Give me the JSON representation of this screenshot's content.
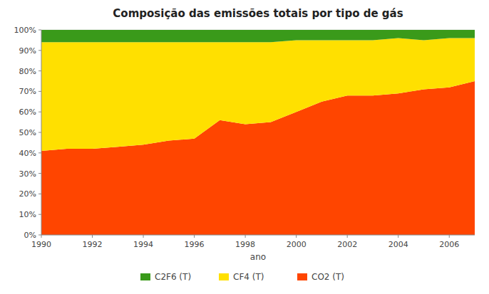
{
  "chart_data": {
    "type": "area",
    "stacked": true,
    "title": "Composição das emissões totais por tipo de gás",
    "x_label": "ano",
    "x": [
      1990,
      1991,
      1992,
      1993,
      1994,
      1995,
      1996,
      1997,
      1998,
      1999,
      2000,
      2001,
      2002,
      2003,
      2004,
      2005,
      2006,
      2007
    ],
    "series": [
      {
        "name": "CO2 (T)",
        "color": "#FF4500",
        "values": [
          0.41,
          0.42,
          0.42,
          0.43,
          0.44,
          0.46,
          0.47,
          0.56,
          0.54,
          0.55,
          0.6,
          0.65,
          0.68,
          0.68,
          0.69,
          0.71,
          0.72,
          0.75
        ]
      },
      {
        "name": "CF4 (T)",
        "color": "#FFE000",
        "values": [
          0.53,
          0.52,
          0.52,
          0.51,
          0.5,
          0.48,
          0.47,
          0.38,
          0.4,
          0.39,
          0.35,
          0.3,
          0.27,
          0.27,
          0.27,
          0.24,
          0.24,
          0.21
        ]
      },
      {
        "name": "C2F6 (T)",
        "color": "#3A9A1A",
        "values": [
          0.06,
          0.06,
          0.06,
          0.06,
          0.06,
          0.06,
          0.06,
          0.06,
          0.06,
          0.06,
          0.05,
          0.05,
          0.05,
          0.05,
          0.04,
          0.05,
          0.04,
          0.04
        ]
      }
    ],
    "xlim": [
      1990,
      2007
    ],
    "xticks": [
      1990,
      1992,
      1994,
      1996,
      1998,
      2000,
      2002,
      2004,
      2006
    ],
    "ylim": [
      0,
      1
    ],
    "yticks": [
      {
        "value": 0,
        "label": "0%"
      },
      {
        "value": 0.1,
        "label": "10%"
      },
      {
        "value": 0.2,
        "label": "20%"
      },
      {
        "value": 0.3,
        "label": "30%"
      },
      {
        "value": 0.4,
        "label": "40%"
      },
      {
        "value": 0.5,
        "label": "50%"
      },
      {
        "value": 0.6,
        "label": "60%"
      },
      {
        "value": 0.7,
        "label": "70%"
      },
      {
        "value": 0.8,
        "label": "80%"
      },
      {
        "value": 0.9,
        "label": "90%"
      },
      {
        "value": 1,
        "label": "100%"
      }
    ],
    "grid": true,
    "legend": "bottom"
  }
}
